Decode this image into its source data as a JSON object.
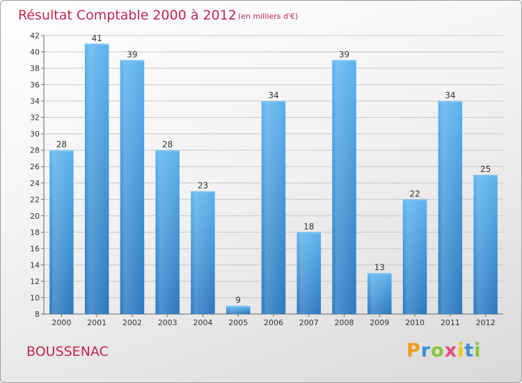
{
  "chart_data": {
    "type": "bar",
    "title": "Résultat Comptable 2000 à 2012",
    "subtitle": "(en milliers d'€)",
    "categories": [
      "2000",
      "2001",
      "2002",
      "2003",
      "2004",
      "2005",
      "2006",
      "2007",
      "2008",
      "2009",
      "2010",
      "2011",
      "2012"
    ],
    "values": [
      28,
      41,
      39,
      28,
      23,
      9,
      34,
      18,
      39,
      13,
      22,
      34,
      25
    ],
    "ylim": [
      8,
      42
    ],
    "yticks": [
      8,
      10,
      12,
      14,
      16,
      18,
      20,
      22,
      24,
      26,
      28,
      30,
      32,
      34,
      36,
      38,
      40,
      42
    ],
    "grid": true,
    "bar_color": "#4a9fe0",
    "grid_color": "#c8c8c8"
  },
  "footer": {
    "commune": "BOUSSENAC",
    "brand": {
      "letters": [
        "P",
        "r",
        "o",
        "x",
        "i",
        "t",
        "i"
      ],
      "colors": [
        "#f39a1d",
        "#3a8fd8",
        "#8bc43f",
        "#e84a7f",
        "#f5c400",
        "#3a8fd8",
        "#8bc43f"
      ]
    }
  }
}
